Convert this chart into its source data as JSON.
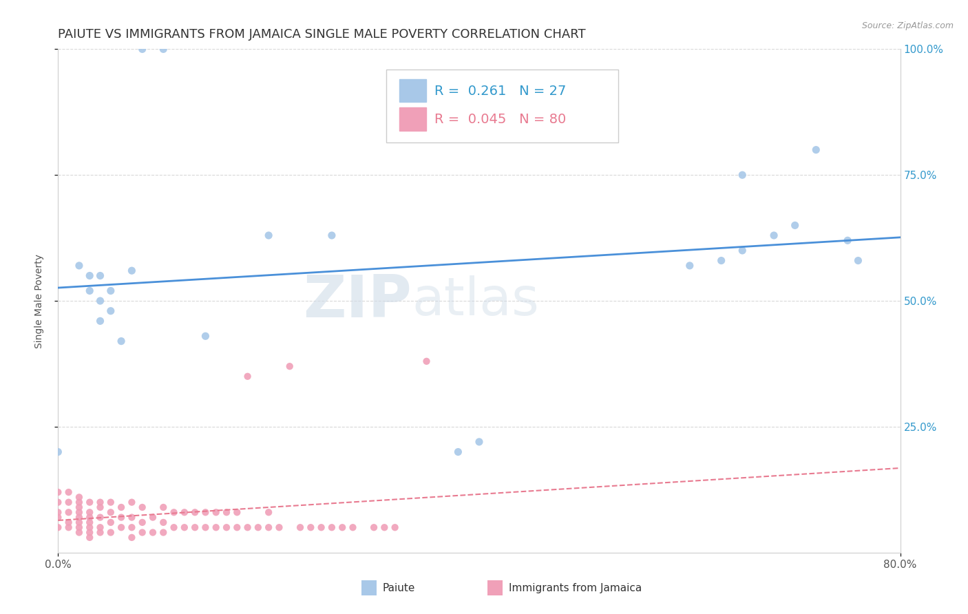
{
  "title": "PAIUTE VS IMMIGRANTS FROM JAMAICA SINGLE MALE POVERTY CORRELATION CHART",
  "source": "Source: ZipAtlas.com",
  "ylabel": "Single Male Poverty",
  "xlim": [
    0.0,
    0.8
  ],
  "ylim": [
    0.0,
    1.0
  ],
  "paiute_color": "#a8c8e8",
  "jamaica_color": "#f0a0b8",
  "paiute_line_color": "#4a90d9",
  "jamaica_line_color": "#e87a90",
  "R_paiute": 0.261,
  "N_paiute": 27,
  "R_jamaica": 0.045,
  "N_jamaica": 80,
  "background_color": "#ffffff",
  "grid_color": "#d8d8d8",
  "title_fontsize": 13,
  "axis_label_fontsize": 10,
  "tick_fontsize": 11,
  "legend_fontsize": 14,
  "paiute_x": [
    0.08,
    0.1,
    0.0,
    0.02,
    0.03,
    0.03,
    0.04,
    0.04,
    0.05,
    0.05,
    0.06,
    0.07,
    0.14,
    0.2,
    0.26,
    0.38,
    0.4,
    0.6,
    0.63,
    0.65,
    0.65,
    0.68,
    0.7,
    0.72,
    0.75,
    0.76,
    0.04
  ],
  "paiute_y": [
    1.0,
    1.0,
    0.2,
    0.57,
    0.55,
    0.52,
    0.5,
    0.55,
    0.48,
    0.52,
    0.42,
    0.56,
    0.43,
    0.63,
    0.63,
    0.2,
    0.22,
    0.57,
    0.58,
    0.6,
    0.75,
    0.63,
    0.65,
    0.8,
    0.62,
    0.58,
    0.46
  ],
  "jamaica_x": [
    0.0,
    0.0,
    0.0,
    0.0,
    0.0,
    0.01,
    0.01,
    0.01,
    0.01,
    0.01,
    0.02,
    0.02,
    0.02,
    0.02,
    0.02,
    0.02,
    0.02,
    0.02,
    0.03,
    0.03,
    0.03,
    0.03,
    0.03,
    0.03,
    0.03,
    0.04,
    0.04,
    0.04,
    0.04,
    0.04,
    0.05,
    0.05,
    0.05,
    0.05,
    0.06,
    0.06,
    0.06,
    0.07,
    0.07,
    0.07,
    0.07,
    0.08,
    0.08,
    0.08,
    0.09,
    0.09,
    0.1,
    0.1,
    0.1,
    0.11,
    0.11,
    0.12,
    0.12,
    0.13,
    0.13,
    0.14,
    0.14,
    0.15,
    0.15,
    0.16,
    0.16,
    0.17,
    0.17,
    0.18,
    0.18,
    0.19,
    0.2,
    0.2,
    0.21,
    0.22,
    0.23,
    0.24,
    0.25,
    0.26,
    0.27,
    0.28,
    0.3,
    0.31,
    0.32,
    0.35
  ],
  "jamaica_y": [
    0.05,
    0.07,
    0.08,
    0.1,
    0.12,
    0.05,
    0.06,
    0.08,
    0.1,
    0.12,
    0.04,
    0.05,
    0.06,
    0.07,
    0.08,
    0.09,
    0.1,
    0.11,
    0.03,
    0.04,
    0.05,
    0.06,
    0.07,
    0.08,
    0.1,
    0.04,
    0.05,
    0.07,
    0.09,
    0.1,
    0.04,
    0.06,
    0.08,
    0.1,
    0.05,
    0.07,
    0.09,
    0.03,
    0.05,
    0.07,
    0.1,
    0.04,
    0.06,
    0.09,
    0.04,
    0.07,
    0.04,
    0.06,
    0.09,
    0.05,
    0.08,
    0.05,
    0.08,
    0.05,
    0.08,
    0.05,
    0.08,
    0.05,
    0.08,
    0.05,
    0.08,
    0.05,
    0.08,
    0.05,
    0.35,
    0.05,
    0.05,
    0.08,
    0.05,
    0.37,
    0.05,
    0.05,
    0.05,
    0.05,
    0.05,
    0.05,
    0.05,
    0.05,
    0.05,
    0.38
  ]
}
